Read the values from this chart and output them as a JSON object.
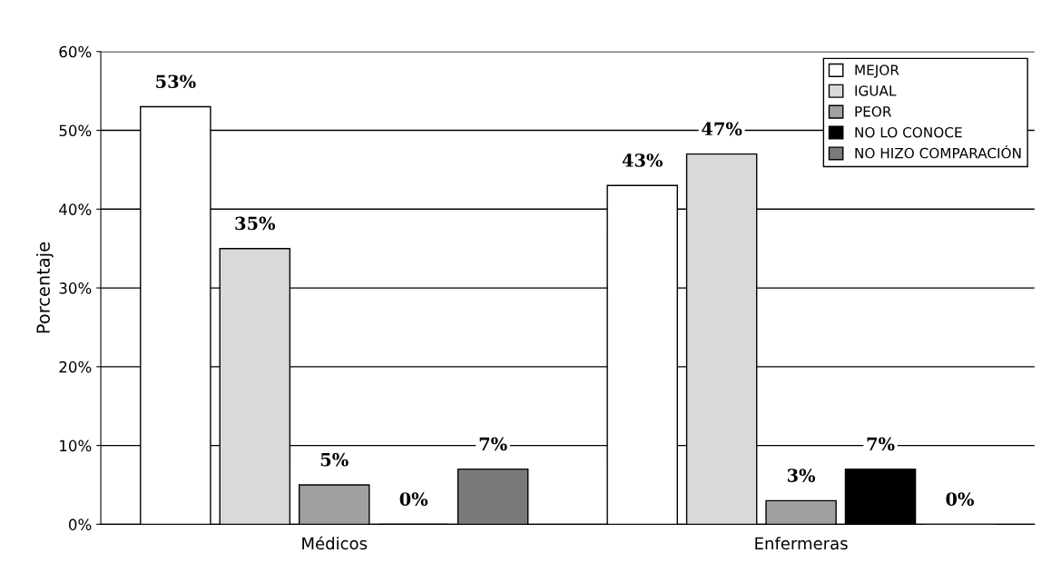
{
  "chart_data": {
    "type": "bar",
    "ylabel": "Porcentaje",
    "categories": [
      "Médicos",
      "Enfermeras"
    ],
    "series": [
      {
        "name": "MEJOR",
        "color": "#ffffff",
        "values": [
          53,
          43
        ],
        "value_labels": [
          "53%",
          "43%"
        ]
      },
      {
        "name": "IGUAL",
        "color": "#d9d9d9",
        "values": [
          35,
          47
        ],
        "value_labels": [
          "35%",
          "47%"
        ]
      },
      {
        "name": "PEOR",
        "color": "#a0a0a0",
        "values": [
          5,
          3
        ],
        "value_labels": [
          "5%",
          "3%"
        ]
      },
      {
        "name": "NO LO CONOCE",
        "color": "#000000",
        "values": [
          0,
          7
        ],
        "value_labels": [
          "0%",
          "7%"
        ]
      },
      {
        "name": "NO HIZO COMPARACIÓN",
        "color": "#7a7a7a",
        "values": [
          7,
          0
        ],
        "value_labels": [
          "7%",
          "0%"
        ]
      }
    ],
    "ylim": [
      0,
      60
    ],
    "yticks": [
      {
        "value": 0,
        "label": "0%"
      },
      {
        "value": 10,
        "label": "10%"
      },
      {
        "value": 20,
        "label": "20%"
      },
      {
        "value": 30,
        "label": "30%"
      },
      {
        "value": 40,
        "label": "40%"
      },
      {
        "value": 50,
        "label": "50%"
      },
      {
        "value": 60,
        "label": "60%"
      }
    ],
    "grid": "y",
    "legend": "top right"
  }
}
